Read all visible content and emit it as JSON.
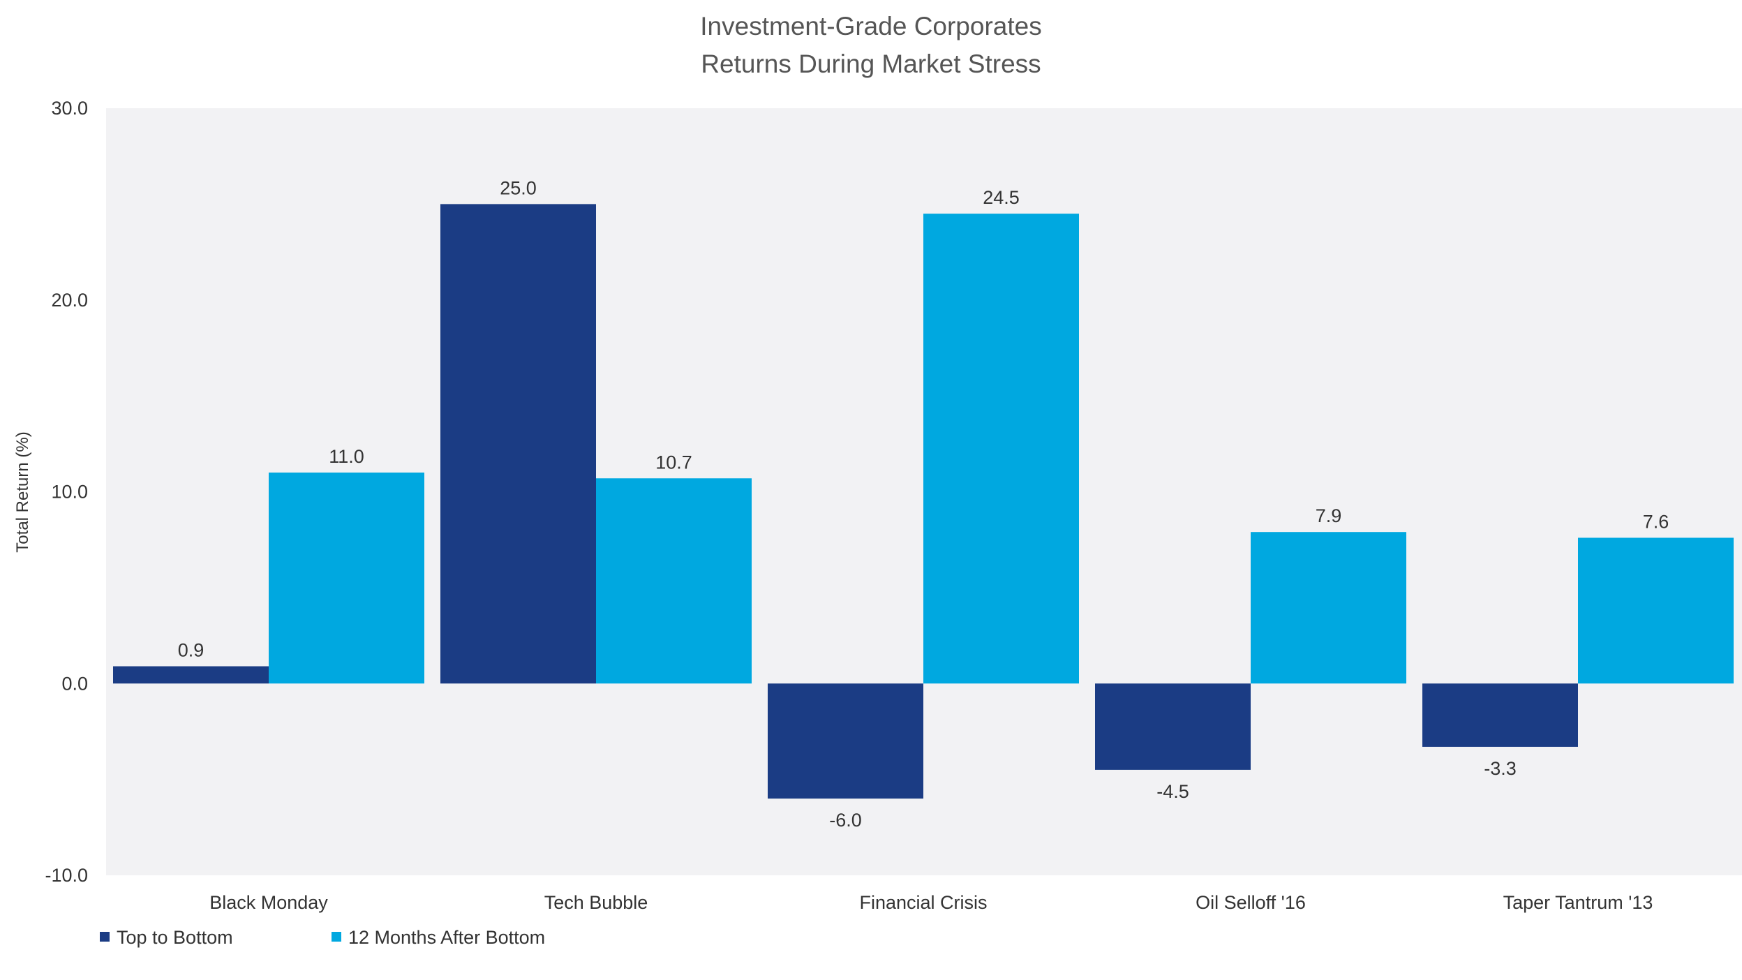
{
  "chart_data": {
    "type": "bar",
    "title": "Investment-Grade Corporates",
    "subtitle": "Returns During Market Stress",
    "ylabel": "Total Return (%)",
    "xlabel": "",
    "ylim": [
      -10,
      30
    ],
    "yticks": [
      30,
      20,
      10,
      0,
      -10
    ],
    "ytick_labels": [
      "30.0",
      "20.0",
      "10.0",
      "0.0",
      "-10.0"
    ],
    "categories": [
      "Black Monday",
      "Tech Bubble",
      "Financial Crisis",
      "Oil Selloff '16",
      "Taper Tantrum '13"
    ],
    "series": [
      {
        "name": "Top to Bottom",
        "color": "#1b3c84",
        "values": [
          0.9,
          25.0,
          -6.0,
          -4.5,
          -3.3
        ],
        "labels": [
          "0.9",
          "25.0",
          "-6.0",
          "-4.5",
          "-3.3"
        ]
      },
      {
        "name": "12 Months After Bottom",
        "color": "#00a8e0",
        "values": [
          11.0,
          10.7,
          24.5,
          7.9,
          7.6
        ],
        "labels": [
          "11.0",
          "10.7",
          "24.5",
          "7.9",
          "7.6"
        ]
      }
    ],
    "plot_background": "#f2f2f4",
    "grid": false,
    "legend": "bottom-left"
  }
}
